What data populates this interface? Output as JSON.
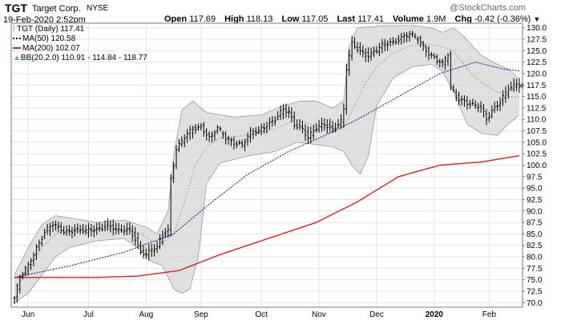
{
  "header": {
    "symbol": "TGT",
    "company": "Target Corp.",
    "exchange": "NYSE",
    "datetime": "19-Feb-2020 2:52pm",
    "watermark": "@StockCharts.com",
    "open_label": "Open",
    "open": "117.69",
    "high_label": "High",
    "high": "118.13",
    "low_label": "Low",
    "low": "117.05",
    "last_label": "Last",
    "last": "117.41",
    "volume_label": "Volume",
    "volume": "1.9M",
    "chg_label": "Chg",
    "chg": "-0.42 (-0.36%)",
    "chg_icon": "down-triangle-icon"
  },
  "legend": [
    {
      "text": "TGT (Daily) 117.41",
      "color": "#000000"
    },
    {
      "text": "MA(50) 120.58",
      "color": "#1a1aa0"
    },
    {
      "text": "MA(200) 102.07",
      "color": "#d42020"
    },
    {
      "text": "BB(20,2.0) 110.91 - 114.84 - 118.77",
      "color": "#000000"
    }
  ],
  "chart_data": {
    "type": "line",
    "ylim": [
      69,
      131
    ],
    "y_ticks": [
      70.0,
      72.5,
      75.0,
      77.5,
      80.0,
      82.5,
      85.0,
      87.5,
      90.0,
      92.5,
      95.0,
      97.5,
      100.0,
      102.5,
      105.0,
      107.5,
      110.0,
      112.5,
      115.0,
      117.5,
      120.0,
      122.5,
      125.0,
      127.5,
      130.0
    ],
    "x_ticks": [
      "Jun",
      "Jul",
      "Aug",
      "Sep",
      "Oct",
      "Nov",
      "Dec",
      "2020",
      "Feb"
    ],
    "x_tick_pos": [
      5,
      27,
      48,
      68,
      90,
      111,
      132,
      153,
      173
    ],
    "n_days": 185,
    "grid": true,
    "price_keyframes": [
      [
        0,
        71.0
      ],
      [
        2,
        75.5
      ],
      [
        5,
        78
      ],
      [
        8,
        82
      ],
      [
        11,
        85.5
      ],
      [
        14,
        87
      ],
      [
        18,
        85.5
      ],
      [
        22,
        86
      ],
      [
        26,
        85.5
      ],
      [
        30,
        86
      ],
      [
        34,
        87
      ],
      [
        38,
        85.5
      ],
      [
        42,
        86
      ],
      [
        44,
        84
      ],
      [
        46,
        81
      ],
      [
        48,
        80.5
      ],
      [
        50,
        81.5
      ],
      [
        52,
        82
      ],
      [
        54,
        85
      ],
      [
        56,
        86
      ],
      [
        57,
        97
      ],
      [
        59,
        103.5
      ],
      [
        62,
        106
      ],
      [
        65,
        108
      ],
      [
        68,
        108.5
      ],
      [
        71,
        106
      ],
      [
        74,
        108
      ],
      [
        77,
        106
      ],
      [
        80,
        105
      ],
      [
        83,
        104.5
      ],
      [
        86,
        107
      ],
      [
        89,
        107.5
      ],
      [
        92,
        109
      ],
      [
        95,
        110
      ],
      [
        98,
        112
      ],
      [
        100,
        111.5
      ],
      [
        102,
        109
      ],
      [
        105,
        108
      ],
      [
        107,
        106
      ],
      [
        110,
        108
      ],
      [
        113,
        109
      ],
      [
        116,
        108
      ],
      [
        119,
        109.5
      ],
      [
        120,
        112
      ],
      [
        121,
        121
      ],
      [
        123,
        126.5
      ],
      [
        126,
        125
      ],
      [
        129,
        124
      ],
      [
        132,
        125
      ],
      [
        135,
        126.5
      ],
      [
        138,
        127
      ],
      [
        141,
        128
      ],
      [
        144,
        128.5
      ],
      [
        147,
        127.5
      ],
      [
        149,
        126
      ],
      [
        151,
        124.5
      ],
      [
        154,
        123
      ],
      [
        156,
        122
      ],
      [
        158,
        124
      ],
      [
        159,
        117
      ],
      [
        161,
        115
      ],
      [
        164,
        114
      ],
      [
        167,
        113
      ],
      [
        170,
        112.5
      ],
      [
        172,
        110
      ],
      [
        174,
        112
      ],
      [
        177,
        114
      ],
      [
        180,
        116.5
      ],
      [
        183,
        117.5
      ],
      [
        184,
        117.4
      ]
    ],
    "series": [
      {
        "name": "MA(50)",
        "keyframes": [
          [
            0,
            75.5
          ],
          [
            20,
            78
          ],
          [
            40,
            81
          ],
          [
            58,
            85
          ],
          [
            70,
            91
          ],
          [
            85,
            98
          ],
          [
            100,
            103
          ],
          [
            115,
            107
          ],
          [
            125,
            110
          ],
          [
            140,
            115
          ],
          [
            155,
            120
          ],
          [
            168,
            122.5
          ],
          [
            178,
            121
          ],
          [
            184,
            120.58
          ]
        ]
      },
      {
        "name": "MA(200)",
        "keyframes": [
          [
            0,
            75.5
          ],
          [
            30,
            75.5
          ],
          [
            45,
            75.8
          ],
          [
            60,
            77
          ],
          [
            75,
            80.5
          ],
          [
            95,
            84.5
          ],
          [
            110,
            87.5
          ],
          [
            125,
            92
          ],
          [
            140,
            97.5
          ],
          [
            155,
            100
          ],
          [
            170,
            100.7
          ],
          [
            184,
            102.07
          ]
        ]
      },
      {
        "name": "BB upper",
        "keyframes": [
          [
            0,
            76
          ],
          [
            5,
            82
          ],
          [
            10,
            87
          ],
          [
            15,
            89
          ],
          [
            20,
            88.5
          ],
          [
            30,
            87.5
          ],
          [
            40,
            88
          ],
          [
            48,
            86.5
          ],
          [
            52,
            85
          ],
          [
            56,
            90
          ],
          [
            58,
            102
          ],
          [
            61,
            112
          ],
          [
            65,
            114
          ],
          [
            70,
            111.5
          ],
          [
            80,
            110.5
          ],
          [
            90,
            111
          ],
          [
            98,
            113
          ],
          [
            104,
            114
          ],
          [
            110,
            114
          ],
          [
            116,
            112.5
          ],
          [
            120,
            114
          ],
          [
            122,
            126
          ],
          [
            125,
            130
          ],
          [
            135,
            130.5
          ],
          [
            145,
            130.5
          ],
          [
            152,
            130
          ],
          [
            156,
            129
          ],
          [
            160,
            130
          ],
          [
            164,
            128
          ],
          [
            170,
            124
          ],
          [
            176,
            122
          ],
          [
            180,
            121
          ],
          [
            184,
            118.77
          ]
        ]
      },
      {
        "name": "BB middle",
        "keyframes": [
          [
            0,
            73
          ],
          [
            5,
            77
          ],
          [
            10,
            82
          ],
          [
            15,
            85
          ],
          [
            25,
            86
          ],
          [
            40,
            86
          ],
          [
            46,
            85
          ],
          [
            50,
            83.5
          ],
          [
            54,
            83
          ],
          [
            58,
            85
          ],
          [
            62,
            92
          ],
          [
            66,
            100
          ],
          [
            70,
            104
          ],
          [
            75,
            106
          ],
          [
            85,
            106.5
          ],
          [
            95,
            108
          ],
          [
            103,
            110
          ],
          [
            110,
            108.5
          ],
          [
            116,
            108
          ],
          [
            120,
            108.5
          ],
          [
            124,
            113
          ],
          [
            128,
            118
          ],
          [
            132,
            121.5
          ],
          [
            138,
            124.5
          ],
          [
            144,
            126
          ],
          [
            150,
            126.5
          ],
          [
            155,
            126
          ],
          [
            160,
            125
          ],
          [
            165,
            121
          ],
          [
            170,
            118
          ],
          [
            176,
            116
          ],
          [
            180,
            115
          ],
          [
            184,
            114.84
          ]
        ]
      },
      {
        "name": "BB lower",
        "keyframes": [
          [
            0,
            70
          ],
          [
            5,
            72
          ],
          [
            10,
            76
          ],
          [
            15,
            80
          ],
          [
            20,
            82
          ],
          [
            30,
            83.5
          ],
          [
            40,
            84
          ],
          [
            46,
            81.5
          ],
          [
            50,
            79
          ],
          [
            54,
            78
          ],
          [
            58,
            73
          ],
          [
            61,
            72
          ],
          [
            64,
            73
          ],
          [
            67,
            80
          ],
          [
            70,
            96
          ],
          [
            75,
            100.5
          ],
          [
            85,
            102
          ],
          [
            95,
            103
          ],
          [
            103,
            105
          ],
          [
            110,
            104.5
          ],
          [
            116,
            104
          ],
          [
            120,
            103
          ],
          [
            123,
            100
          ],
          [
            126,
            98
          ],
          [
            129,
            102
          ],
          [
            132,
            113
          ],
          [
            138,
            119
          ],
          [
            145,
            121.5
          ],
          [
            152,
            122
          ],
          [
            156,
            120.5
          ],
          [
            160,
            116
          ],
          [
            165,
            109
          ],
          [
            170,
            107
          ],
          [
            176,
            106.5
          ],
          [
            180,
            109
          ],
          [
            184,
            110.91
          ]
        ]
      }
    ]
  }
}
